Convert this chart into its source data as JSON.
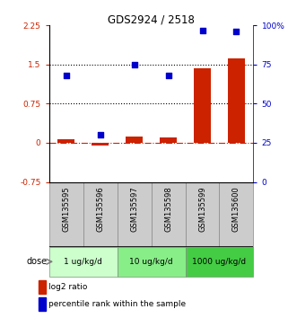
{
  "title": "GDS2924 / 2518",
  "samples": [
    "GSM135595",
    "GSM135596",
    "GSM135597",
    "GSM135598",
    "GSM135599",
    "GSM135600"
  ],
  "log2_ratio": [
    0.07,
    -0.05,
    0.12,
    0.1,
    1.43,
    1.62
  ],
  "percentile_rank": [
    68,
    30,
    75,
    68,
    97,
    96
  ],
  "ylim_left": [
    -0.75,
    2.25
  ],
  "ylim_right": [
    0,
    100
  ],
  "yticks_left": [
    -0.75,
    0,
    0.75,
    1.5,
    2.25
  ],
  "yticks_right": [
    0,
    25,
    50,
    75,
    100
  ],
  "ytick_labels_left": [
    "-0.75",
    "0",
    "0.75",
    "1.5",
    "2.25"
  ],
  "ytick_labels_right": [
    "0",
    "25",
    "50",
    "75",
    "100%"
  ],
  "hlines": [
    0.75,
    1.5
  ],
  "bar_color": "#cc2200",
  "scatter_color": "#0000cc",
  "zero_line_color": "#cc2200",
  "dose_groups": [
    {
      "label": "1 ug/kg/d",
      "indices": [
        0,
        1
      ],
      "color": "#ccffcc"
    },
    {
      "label": "10 ug/kg/d",
      "indices": [
        2,
        3
      ],
      "color": "#88ee88"
    },
    {
      "label": "1000 ug/kg/d",
      "indices": [
        4,
        5
      ],
      "color": "#44cc44"
    }
  ],
  "dose_label": "dose",
  "legend_bar_label": "log2 ratio",
  "legend_scatter_label": "percentile rank within the sample",
  "bar_width": 0.5,
  "sample_bg_color": "#cccccc"
}
